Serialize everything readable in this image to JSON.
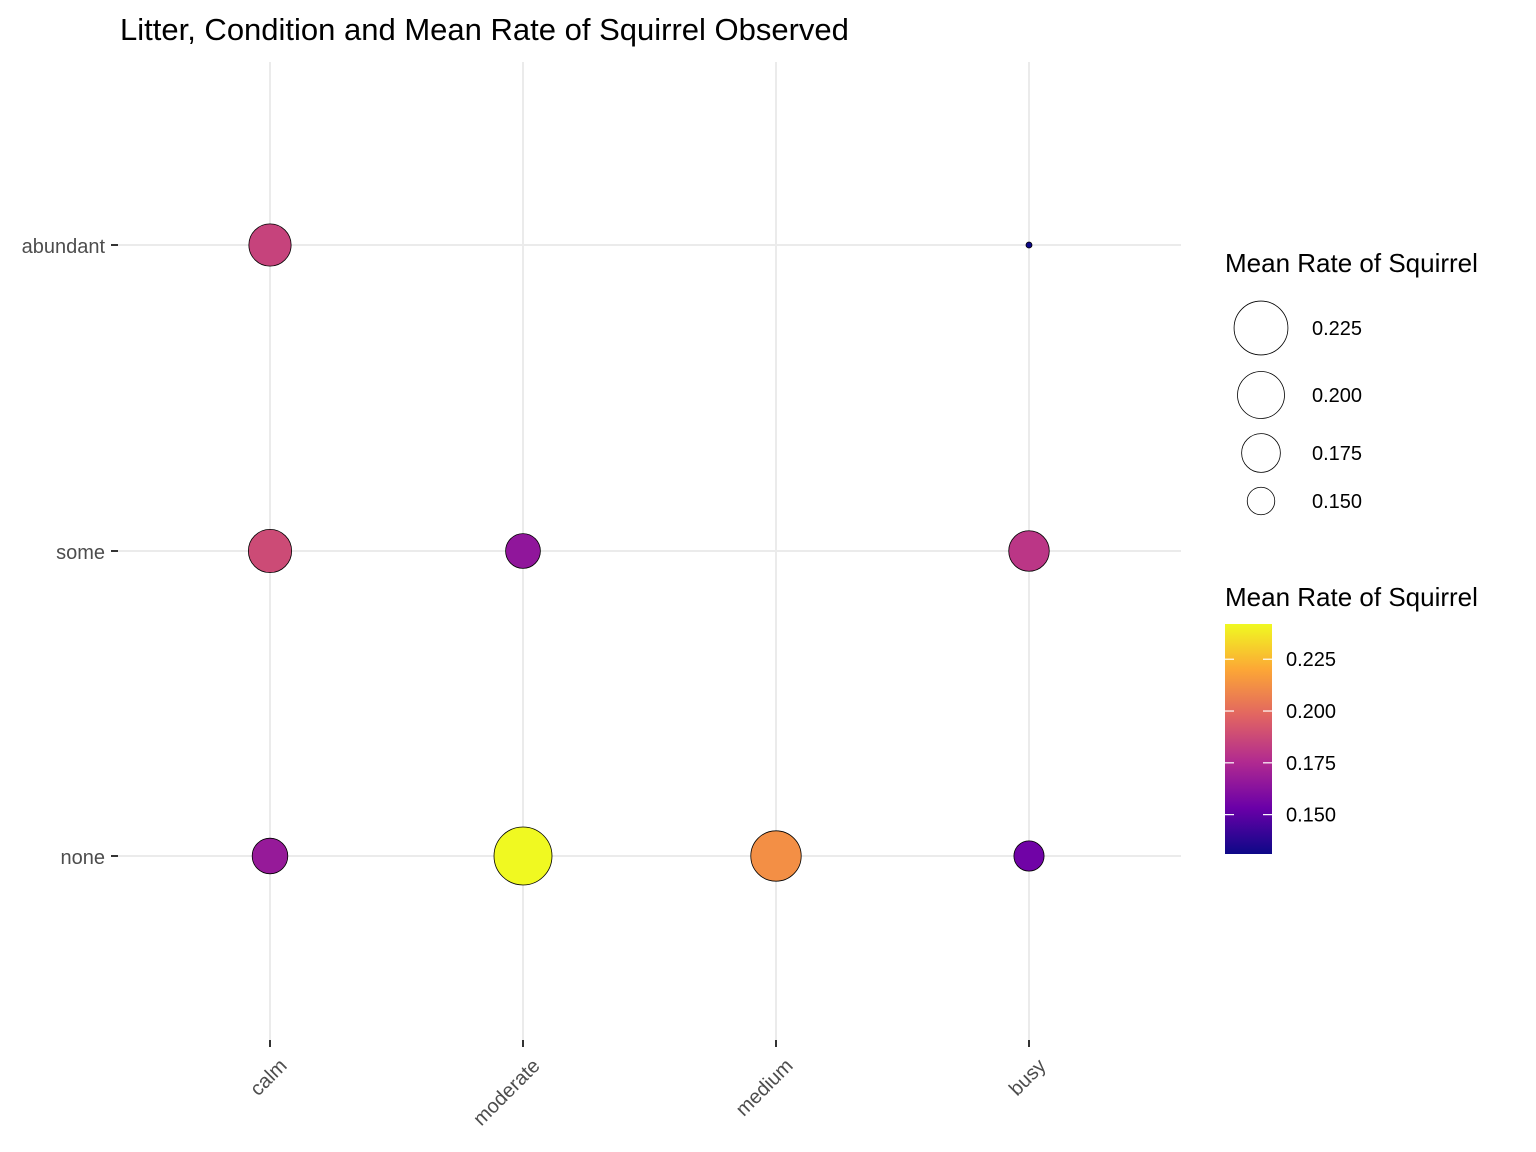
{
  "chart_data": {
    "type": "scatter",
    "title": "Litter, Condition and Mean Rate of Squirrel Observed",
    "xlabel": "",
    "ylabel": "",
    "x_categories": [
      "calm",
      "moderate",
      "medium",
      "busy"
    ],
    "y_categories": [
      "none",
      "some",
      "abundant"
    ],
    "points": [
      {
        "x": "calm",
        "y": "abundant",
        "value": 0.185
      },
      {
        "x": "busy",
        "y": "abundant",
        "value": 0.131
      },
      {
        "x": "calm",
        "y": "some",
        "value": 0.188
      },
      {
        "x": "moderate",
        "y": "some",
        "value": 0.165
      },
      {
        "x": "busy",
        "y": "some",
        "value": 0.18
      },
      {
        "x": "calm",
        "y": "none",
        "value": 0.167
      },
      {
        "x": "moderate",
        "y": "none",
        "value": 0.242
      },
      {
        "x": "medium",
        "y": "none",
        "value": 0.212
      },
      {
        "x": "busy",
        "y": "none",
        "value": 0.155
      }
    ],
    "size_legend": {
      "title": "Mean Rate of Squirrel",
      "breaks": [
        0.225,
        0.2,
        0.175,
        0.15
      ],
      "labels": [
        "0.225",
        "0.200",
        "0.175",
        "0.150"
      ]
    },
    "color_legend": {
      "title": "Mean Rate of Squirrel",
      "palette": "plasma",
      "limits": [
        0.131,
        0.242
      ],
      "breaks": [
        0.225,
        0.2,
        0.175,
        0.15
      ],
      "labels": [
        "0.225",
        "0.200",
        "0.175",
        "0.150"
      ],
      "colors": [
        "#0d0887",
        "#6a00a8",
        "#b12a90",
        "#e16462",
        "#fca636",
        "#f0f921"
      ]
    },
    "grid": true,
    "legend_position": "right"
  }
}
